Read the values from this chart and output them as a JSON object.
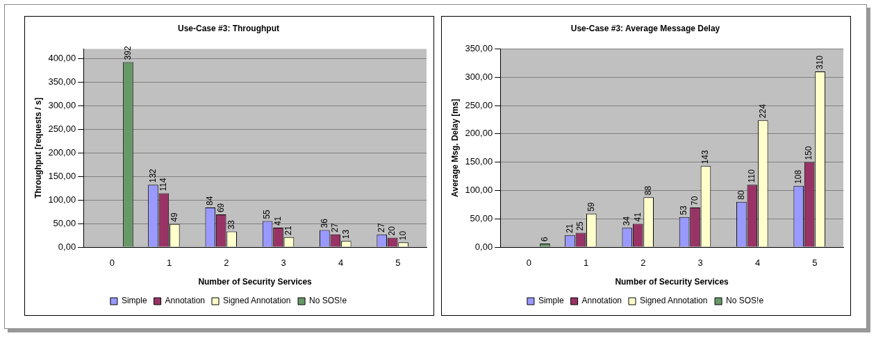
{
  "chart_data": [
    {
      "type": "bar",
      "title": "Use-Case #3: Throughput",
      "xlabel": "Number of Security Services",
      "ylabel": "Throughput [requests / s]",
      "categories": [
        "0",
        "1",
        "2",
        "3",
        "4",
        "5"
      ],
      "series": [
        {
          "name": "Simple",
          "color": "#9999ff",
          "values": [
            null,
            132,
            84,
            55,
            36,
            27
          ]
        },
        {
          "name": "Annotation",
          "color": "#993366",
          "values": [
            null,
            114,
            69,
            41,
            27,
            20
          ]
        },
        {
          "name": "Signed Annotation",
          "color": "#ffffcc",
          "values": [
            null,
            49,
            33,
            21,
            13,
            10
          ]
        },
        {
          "name": "No SOS!e",
          "color": "#669966",
          "values": [
            392,
            null,
            null,
            null,
            null,
            null
          ]
        }
      ],
      "ylim": [
        0,
        420
      ],
      "yticks": [
        {
          "value": 0,
          "label": "0,00"
        },
        {
          "value": 50,
          "label": "50,00"
        },
        {
          "value": 100,
          "label": "100,00"
        },
        {
          "value": 150,
          "label": "150,00"
        },
        {
          "value": 200,
          "label": "200,00"
        },
        {
          "value": 250,
          "label": "250,00"
        },
        {
          "value": 300,
          "label": "300,00"
        },
        {
          "value": 350,
          "label": "350,00"
        },
        {
          "value": 400,
          "label": "400,00"
        }
      ],
      "grid": "y",
      "legend": "bottom",
      "data_labels": true
    },
    {
      "type": "bar",
      "title": "Use-Case #3: Average Message Delay",
      "xlabel": "Number of Security Services",
      "ylabel": "Average Msg. Delay [ms]",
      "categories": [
        "0",
        "1",
        "2",
        "3",
        "4",
        "5"
      ],
      "series": [
        {
          "name": "Simple",
          "color": "#9999ff",
          "values": [
            null,
            21,
            34,
            53,
            80,
            108
          ]
        },
        {
          "name": "Annotation",
          "color": "#993366",
          "values": [
            null,
            25,
            41,
            70,
            110,
            150
          ]
        },
        {
          "name": "Signed Annotation",
          "color": "#ffffcc",
          "values": [
            null,
            59,
            88,
            143,
            224,
            310
          ]
        },
        {
          "name": "No SOS!e",
          "color": "#669966",
          "values": [
            6,
            null,
            null,
            null,
            null,
            null
          ]
        }
      ],
      "ylim": [
        0,
        350
      ],
      "yticks": [
        {
          "value": 0,
          "label": "0,00"
        },
        {
          "value": 50,
          "label": "50,00"
        },
        {
          "value": 100,
          "label": "100,00"
        },
        {
          "value": 150,
          "label": "150,00"
        },
        {
          "value": 200,
          "label": "200,00"
        },
        {
          "value": 250,
          "label": "250,00"
        },
        {
          "value": 300,
          "label": "300,00"
        },
        {
          "value": 350,
          "label": "350,00"
        }
      ],
      "grid": "y",
      "legend": "bottom",
      "data_labels": true
    }
  ]
}
